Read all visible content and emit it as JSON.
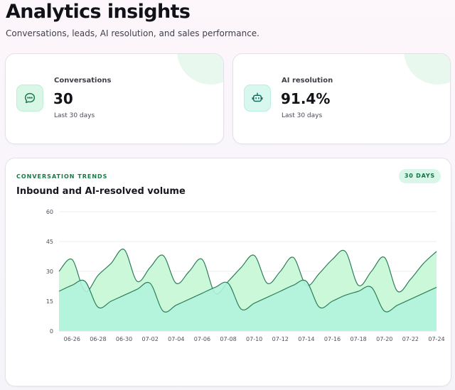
{
  "header": {
    "title": "Analytics insights",
    "subtitle": "Conversations, leads, AI resolution, and sales performance."
  },
  "stats": [
    {
      "label": "Conversations",
      "value": "30",
      "caption": "Last 30 days",
      "icon": "chat-bubble-icon",
      "accent": "#d9f7e6"
    },
    {
      "label": "AI resolution",
      "value": "91.4%",
      "caption": "Last 30 days",
      "icon": "robot-icon",
      "accent": "#d7f7ef"
    }
  ],
  "chart": {
    "eyebrow": "CONVERSATION TRENDS",
    "title": "Inbound and AI-resolved volume",
    "range_badge": "30 DAYS"
  },
  "colors": {
    "inbound_fill": "#c9f8d8",
    "resolved_fill": "#b1f3dc",
    "line_stroke": "#2e7d5b",
    "accent_text": "#167a45"
  },
  "chart_data": {
    "type": "area",
    "x": [
      "06-25",
      "06-26",
      "06-27",
      "06-28",
      "06-29",
      "06-30",
      "07-01",
      "07-02",
      "07-03",
      "07-04",
      "07-05",
      "07-06",
      "07-07",
      "07-08",
      "07-09",
      "07-10",
      "07-11",
      "07-12",
      "07-13",
      "07-14",
      "07-15",
      "07-16",
      "07-17",
      "07-18",
      "07-19",
      "07-20",
      "07-21",
      "07-22",
      "07-23",
      "07-24"
    ],
    "x_tick_labels": [
      "06-26",
      "06-28",
      "06-30",
      "07-02",
      "07-04",
      "07-06",
      "07-08",
      "07-10",
      "07-12",
      "07-14",
      "07-16",
      "07-18",
      "07-20",
      "07-22",
      "07-24"
    ],
    "series": [
      {
        "values": [
          30,
          36,
          20,
          28,
          34,
          41,
          25,
          32,
          38,
          24,
          30,
          36,
          19,
          25,
          32,
          38,
          24,
          30,
          37,
          23,
          29,
          36,
          40,
          23,
          30,
          37,
          20,
          26,
          34,
          40
        ]
      },
      {
        "values": [
          20,
          23,
          25,
          12,
          15,
          18,
          21,
          24,
          10,
          13,
          16,
          19,
          22,
          24,
          11,
          14,
          17,
          20,
          23,
          25,
          12,
          15,
          18,
          20,
          22,
          10,
          13,
          16,
          19,
          22
        ]
      }
    ],
    "ylim": [
      0,
      60
    ],
    "yticks": [
      0,
      15,
      30,
      45,
      60
    ],
    "grid": true,
    "legend": "none"
  }
}
